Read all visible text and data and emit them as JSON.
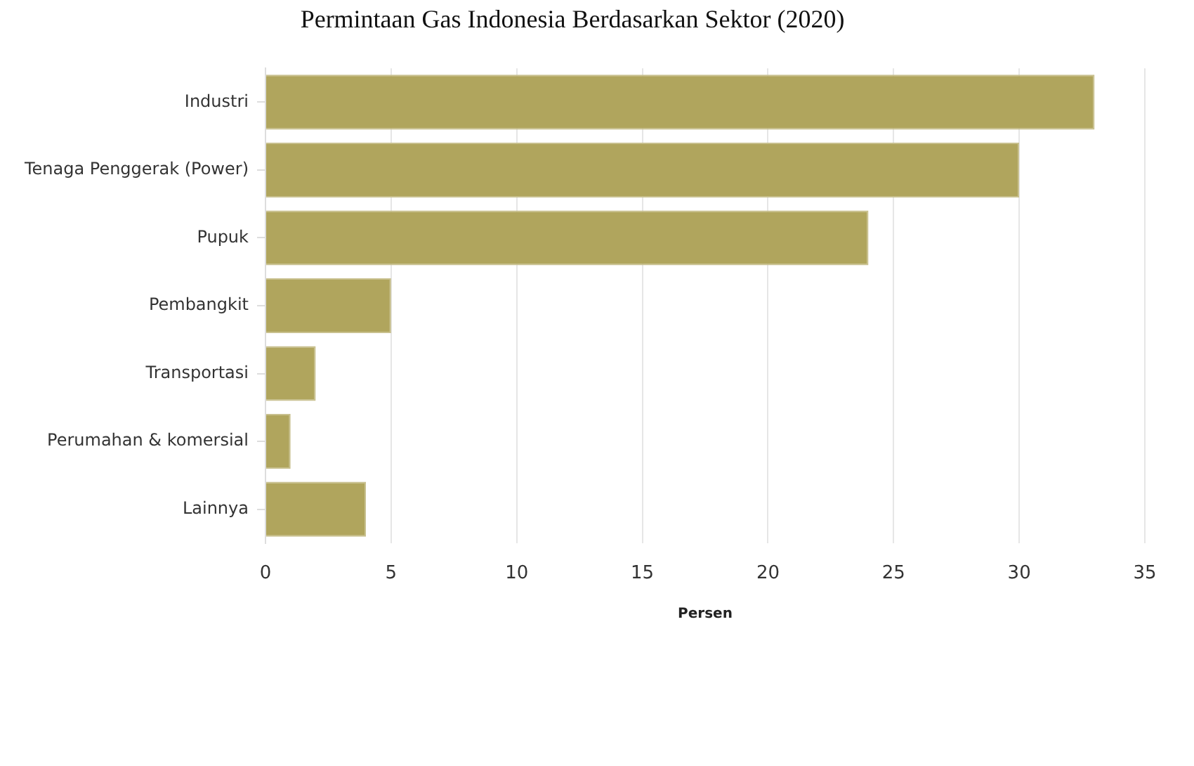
{
  "chart_data": {
    "type": "bar",
    "orientation": "horizontal",
    "title": "Permintaan Gas Indonesia Berdasarkan Sektor (2020)",
    "xlabel": "Persen",
    "categories": [
      "Industri",
      "Tenaga Penggerak (Power)",
      "Pupuk",
      "Pembangkit",
      "Transportasi",
      "Perumahan & komersial",
      "Lainnya"
    ],
    "values": [
      33,
      30,
      24,
      5,
      2,
      1,
      4
    ],
    "color": "#b0a55d",
    "xlim": [
      0,
      35
    ],
    "xticks": [
      0,
      5,
      10,
      15,
      20,
      25,
      30,
      35
    ],
    "grid": "x"
  }
}
